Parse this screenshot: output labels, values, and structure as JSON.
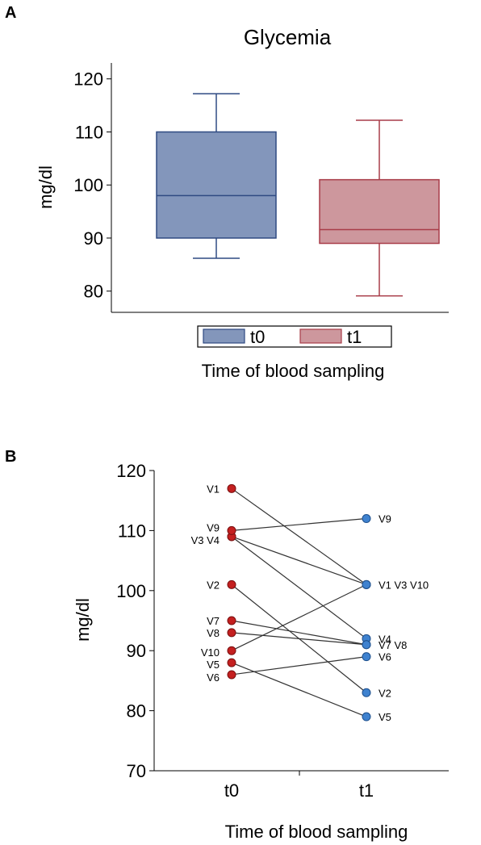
{
  "panels": {
    "a_label": "A",
    "b_label": "B"
  },
  "chart_data": [
    {
      "type": "box",
      "title": "Glycemia",
      "xlabel": "Time of blood sampling",
      "ylabel": "mg/dl",
      "ylim": [
        76,
        123
      ],
      "yticks": [
        80,
        90,
        100,
        110,
        120
      ],
      "legend_position": "bottom",
      "series": [
        {
          "name": "t0",
          "color": "#8396bb",
          "edge": "#2f4a82",
          "min": 86.2,
          "q1": 90,
          "median": 98,
          "q3": 110,
          "max": 117.2
        },
        {
          "name": "t1",
          "color": "#cd979d",
          "edge": "#a83c48",
          "min": 79.1,
          "q1": 89,
          "median": 91.6,
          "q3": 101,
          "max": 112.2
        }
      ]
    },
    {
      "type": "scatter",
      "xlabel": "Time of blood sampling",
      "ylabel": "mg/dl",
      "ylim": [
        70,
        120
      ],
      "yticks": [
        70,
        80,
        90,
        100,
        110,
        120
      ],
      "categories": [
        "t0",
        "t1"
      ],
      "colors": {
        "t0": "#c42020",
        "t1": "#3f82cf"
      },
      "subjects": [
        {
          "id": "V1",
          "t0": 117,
          "t1": 101
        },
        {
          "id": "V2",
          "t0": 101,
          "t1": 83
        },
        {
          "id": "V3",
          "t0": 109,
          "t1": 101
        },
        {
          "id": "V4",
          "t0": 109,
          "t1": 92
        },
        {
          "id": "V5",
          "t0": 88,
          "t1": 79
        },
        {
          "id": "V6",
          "t0": 86,
          "t1": 89
        },
        {
          "id": "V7",
          "t0": 95,
          "t1": 91
        },
        {
          "id": "V8",
          "t0": 93,
          "t1": 91
        },
        {
          "id": "V9",
          "t0": 110,
          "t1": 112
        },
        {
          "id": "V10",
          "t0": 90,
          "t1": 101
        }
      ],
      "labels_t0": [
        {
          "text": "V1",
          "value": 117
        },
        {
          "text": "V9",
          "value": 110
        },
        {
          "text": "V3 V4",
          "value": 109
        },
        {
          "text": "V2",
          "value": 101
        },
        {
          "text": "V7",
          "value": 95
        },
        {
          "text": "V8",
          "value": 93
        },
        {
          "text": "V10",
          "value": 90
        },
        {
          "text": "V5",
          "value": 88
        },
        {
          "text": "V6",
          "value": 86
        }
      ],
      "labels_t1": [
        {
          "text": "V9",
          "value": 112
        },
        {
          "text": "V1 V3 V10",
          "value": 101
        },
        {
          "text": "V4",
          "value": 92
        },
        {
          "text": "V7 V8",
          "value": 91
        },
        {
          "text": "V6",
          "value": 89
        },
        {
          "text": "V2",
          "value": 83
        },
        {
          "text": "V5",
          "value": 79
        }
      ]
    }
  ]
}
